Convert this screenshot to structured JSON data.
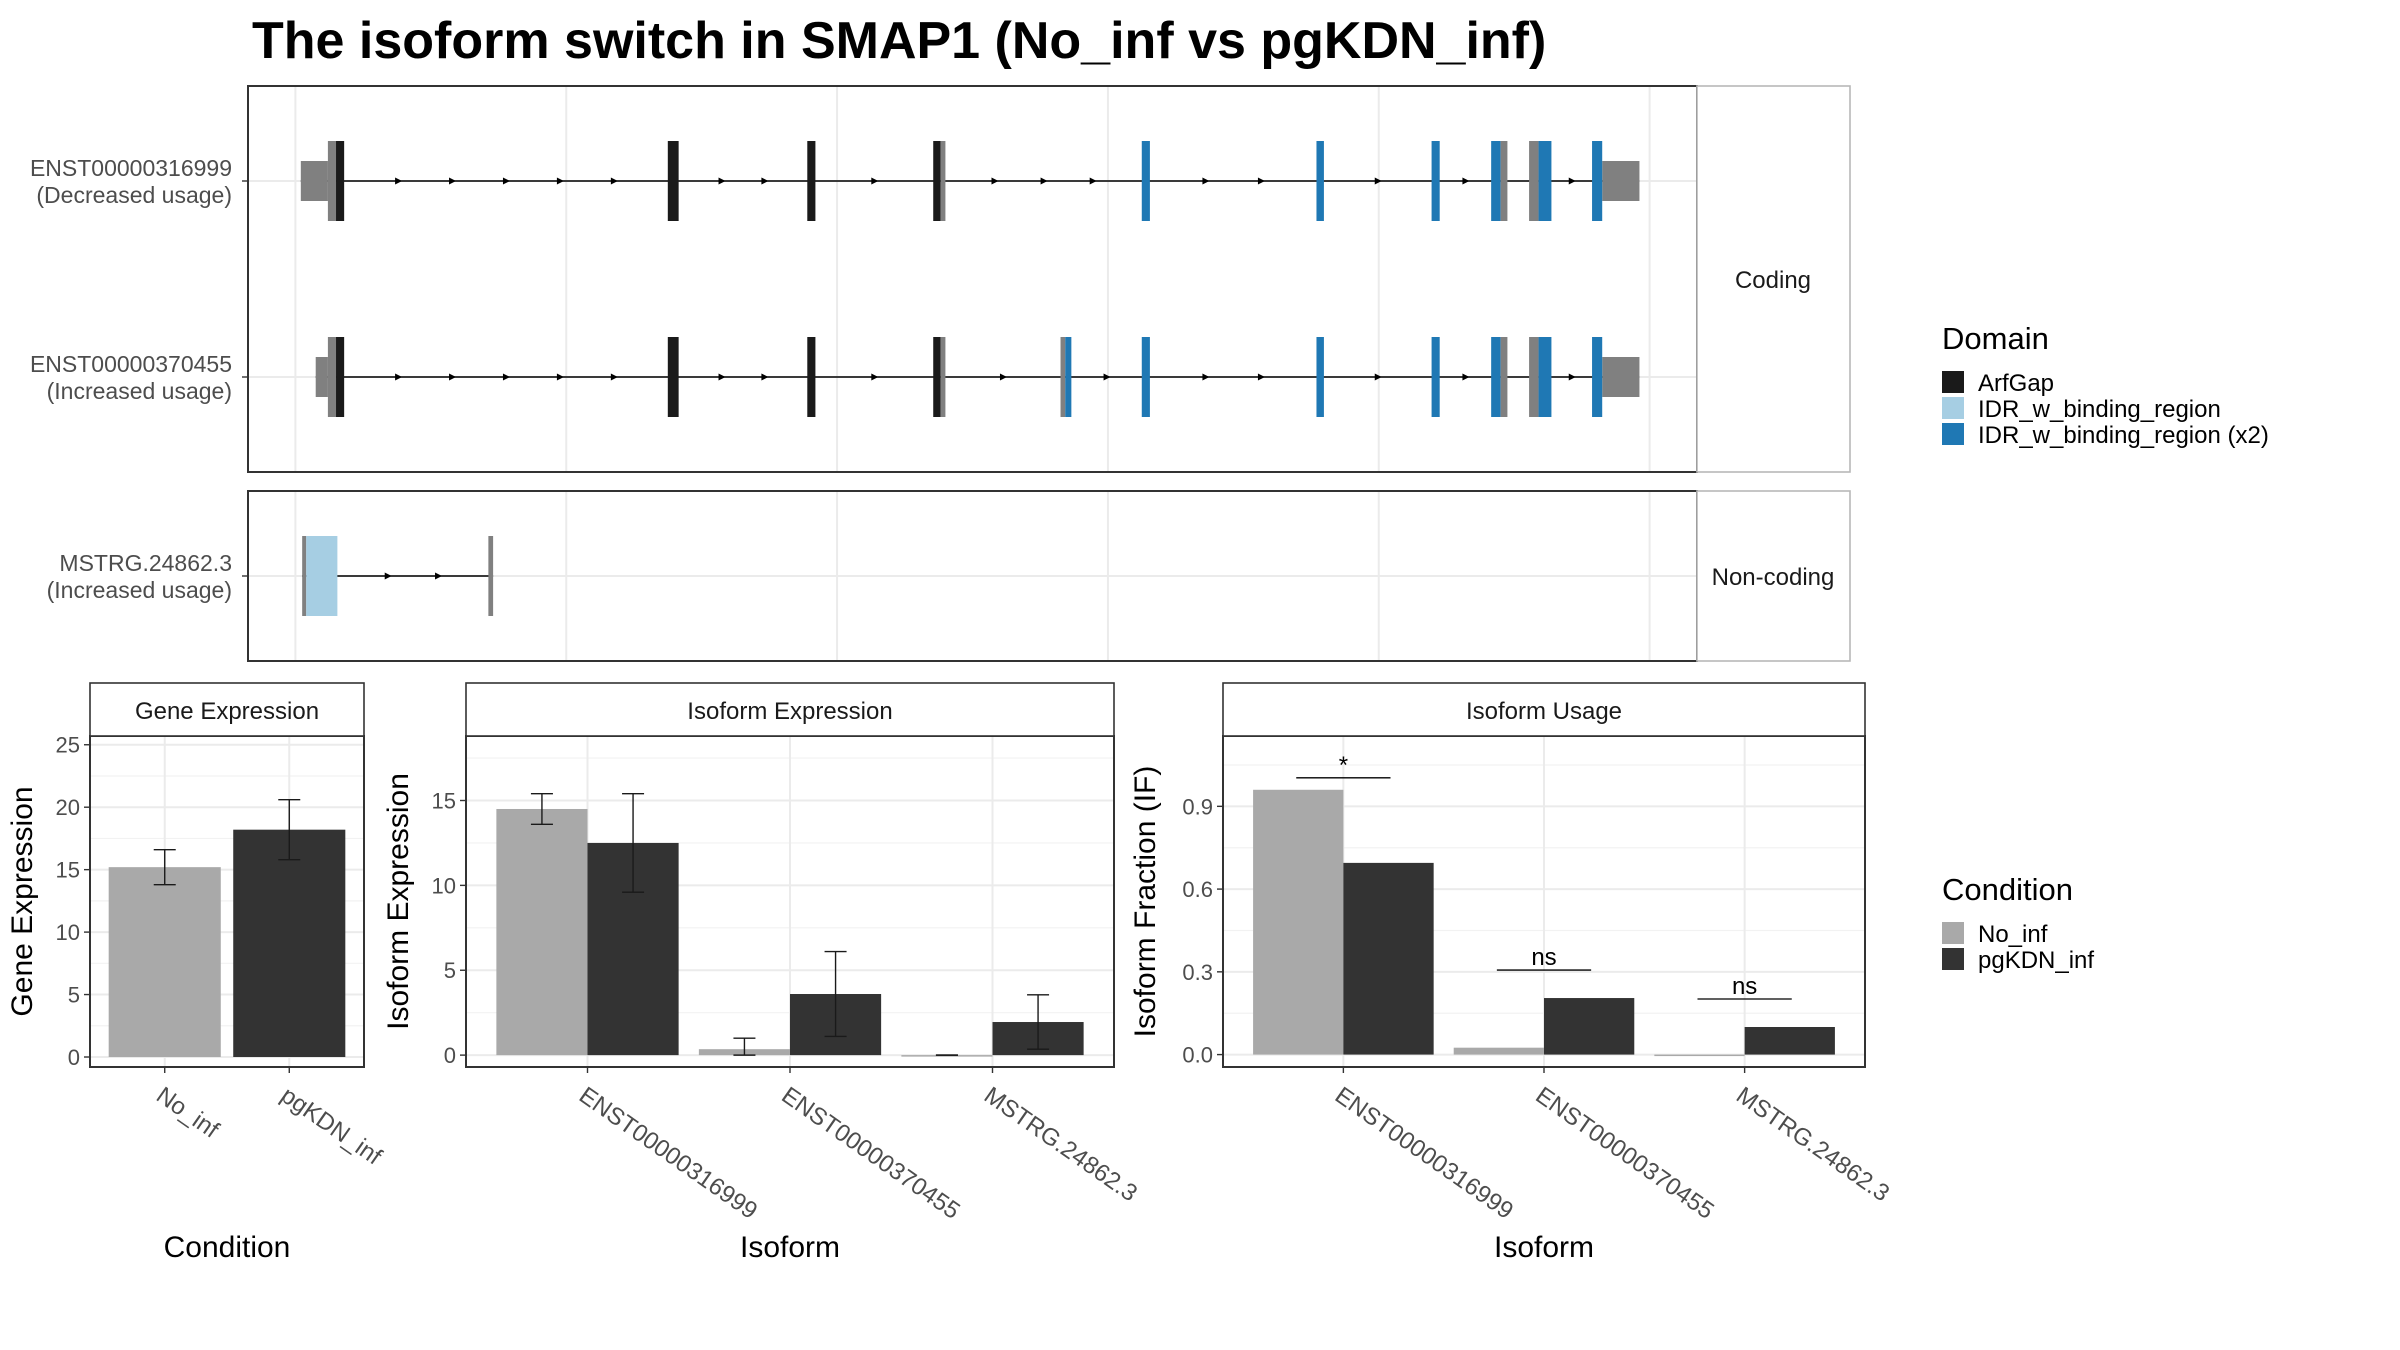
{
  "title": "The isoform switch in SMAP1 (No_inf vs pgKDN_inf)",
  "colors": {
    "utr": "#808080",
    "ArfGap": "#1a1a1a",
    "IDR_w_binding_region": "#a6cee3",
    "IDR_w_binding_region (x2)": "#1f78b4",
    "No_inf": "#a9a9a9",
    "pgKDN_inf": "#333333"
  },
  "structure": {
    "coding_label": "Coding",
    "noncoding_label": "Non-coding",
    "transcripts": [
      {
        "id": "ENST00000316999",
        "usage": "(Decreased usage)",
        "group": "coding",
        "utr5": [
          [
            0.8,
            4.8
          ]
        ],
        "utr3": [
          [
            193.0,
            198.5
          ]
        ],
        "exons": [
          {
            "start": 4.8,
            "end": 6.0,
            "domain": "utr"
          },
          {
            "start": 6.0,
            "end": 7.2,
            "domain": "ArfGap"
          },
          {
            "start": 55.0,
            "end": 56.6,
            "domain": "ArfGap"
          },
          {
            "start": 75.6,
            "end": 76.8,
            "domain": "ArfGap"
          },
          {
            "start": 94.2,
            "end": 95.3,
            "domain": "ArfGap"
          },
          {
            "start": 95.3,
            "end": 96.0,
            "domain": "utr"
          },
          {
            "start": 125.0,
            "end": 126.2,
            "domain": "IDR_w_binding_region (x2)"
          },
          {
            "start": 150.8,
            "end": 151.9,
            "domain": "IDR_w_binding_region (x2)"
          },
          {
            "start": 167.8,
            "end": 169.0,
            "domain": "IDR_w_binding_region (x2)"
          },
          {
            "start": 176.6,
            "end": 178.0,
            "domain": "IDR_w_binding_region (x2)"
          },
          {
            "start": 178.0,
            "end": 179.0,
            "domain": "utr"
          },
          {
            "start": 182.2,
            "end": 183.6,
            "domain": "utr"
          },
          {
            "start": 183.6,
            "end": 185.5,
            "domain": "IDR_w_binding_region (x2)"
          },
          {
            "start": 191.5,
            "end": 193.0,
            "domain": "IDR_w_binding_region (x2)"
          }
        ]
      },
      {
        "id": "ENST00000370455",
        "usage": "(Increased usage)",
        "group": "coding",
        "utr5": [
          [
            3.0,
            4.8
          ]
        ],
        "utr3": [
          [
            193.0,
            198.5
          ]
        ],
        "exons": [
          {
            "start": 4.8,
            "end": 6.0,
            "domain": "utr"
          },
          {
            "start": 6.0,
            "end": 7.2,
            "domain": "ArfGap"
          },
          {
            "start": 55.0,
            "end": 56.6,
            "domain": "ArfGap"
          },
          {
            "start": 75.6,
            "end": 76.8,
            "domain": "ArfGap"
          },
          {
            "start": 94.2,
            "end": 95.3,
            "domain": "ArfGap"
          },
          {
            "start": 95.3,
            "end": 96.0,
            "domain": "utr"
          },
          {
            "start": 113.0,
            "end": 113.7,
            "domain": "utr"
          },
          {
            "start": 113.7,
            "end": 114.6,
            "domain": "IDR_w_binding_region (x2)"
          },
          {
            "start": 125.0,
            "end": 126.2,
            "domain": "IDR_w_binding_region (x2)"
          },
          {
            "start": 150.8,
            "end": 151.9,
            "domain": "IDR_w_binding_region (x2)"
          },
          {
            "start": 167.8,
            "end": 169.0,
            "domain": "IDR_w_binding_region (x2)"
          },
          {
            "start": 176.6,
            "end": 178.0,
            "domain": "IDR_w_binding_region (x2)"
          },
          {
            "start": 178.0,
            "end": 179.0,
            "domain": "utr"
          },
          {
            "start": 182.2,
            "end": 183.6,
            "domain": "utr"
          },
          {
            "start": 183.6,
            "end": 185.5,
            "domain": "IDR_w_binding_region (x2)"
          },
          {
            "start": 191.5,
            "end": 193.0,
            "domain": "IDR_w_binding_region (x2)"
          }
        ]
      },
      {
        "id": "MSTRG.24862.3",
        "usage": "(Increased usage)",
        "group": "noncoding",
        "utr5": [],
        "utr3": [],
        "exons": [
          {
            "start": 1.0,
            "end": 1.6,
            "domain": "utr"
          },
          {
            "start": 1.6,
            "end": 6.2,
            "domain": "IDR_w_binding_region"
          },
          {
            "start": 28.5,
            "end": 29.2,
            "domain": "utr"
          }
        ]
      }
    ]
  },
  "legend_domain": {
    "title": "Domain",
    "items": [
      "ArfGap",
      "IDR_w_binding_region",
      "IDR_w_binding_region (x2)"
    ]
  },
  "legend_condition": {
    "title": "Condition",
    "items": [
      "No_inf",
      "pgKDN_inf"
    ]
  },
  "chart_data": [
    {
      "type": "bar",
      "title": "Gene Expression",
      "xlabel": "Condition",
      "ylabel": "Gene Expression",
      "categories": [
        "No_inf",
        "pgKDN_inf"
      ],
      "values": [
        15.2,
        18.2
      ],
      "errors": [
        [
          13.8,
          16.6
        ],
        [
          15.8,
          20.6
        ]
      ],
      "ylim": [
        -0.8,
        25.7
      ],
      "yticks": [
        0,
        5,
        10,
        15,
        20,
        25
      ],
      "grid": true
    },
    {
      "type": "bar",
      "title": "Isoform Expression",
      "xlabel": "Isoform",
      "ylabel": "Isoform Expression",
      "categories": [
        "ENST00000316999",
        "ENST00000370455",
        "MSTRG.24862.3"
      ],
      "series": [
        {
          "name": "No_inf",
          "values": [
            14.5,
            0.35,
            0.0
          ],
          "errors": [
            [
              13.6,
              15.4
            ],
            [
              0.0,
              1.0
            ],
            [
              0.0,
              0.0
            ]
          ]
        },
        {
          "name": "pgKDN_inf",
          "values": [
            12.5,
            3.6,
            1.95
          ],
          "errors": [
            [
              9.6,
              15.4
            ],
            [
              1.1,
              6.1
            ],
            [
              0.35,
              3.55
            ]
          ]
        }
      ],
      "ylim": [
        -0.7,
        18.8
      ],
      "yticks": [
        0,
        5,
        10,
        15
      ],
      "grid": true
    },
    {
      "type": "bar",
      "title": "Isoform Usage",
      "xlabel": "Isoform",
      "ylabel": "Isoform Fraction (IF)",
      "categories": [
        "ENST00000316999",
        "ENST00000370455",
        "MSTRG.24862.3"
      ],
      "series": [
        {
          "name": "No_inf",
          "values": [
            0.96,
            0.025,
            0.0
          ]
        },
        {
          "name": "pgKDN_inf",
          "values": [
            0.695,
            0.205,
            0.1
          ]
        }
      ],
      "significance": [
        "*",
        "ns",
        "ns"
      ],
      "ylim": [
        -0.045,
        1.155
      ],
      "yticks": [
        0.0,
        0.3,
        0.6,
        0.9
      ],
      "ytick_labels": [
        "0.0",
        "0.3",
        "0.6",
        "0.9"
      ],
      "grid": true
    }
  ]
}
